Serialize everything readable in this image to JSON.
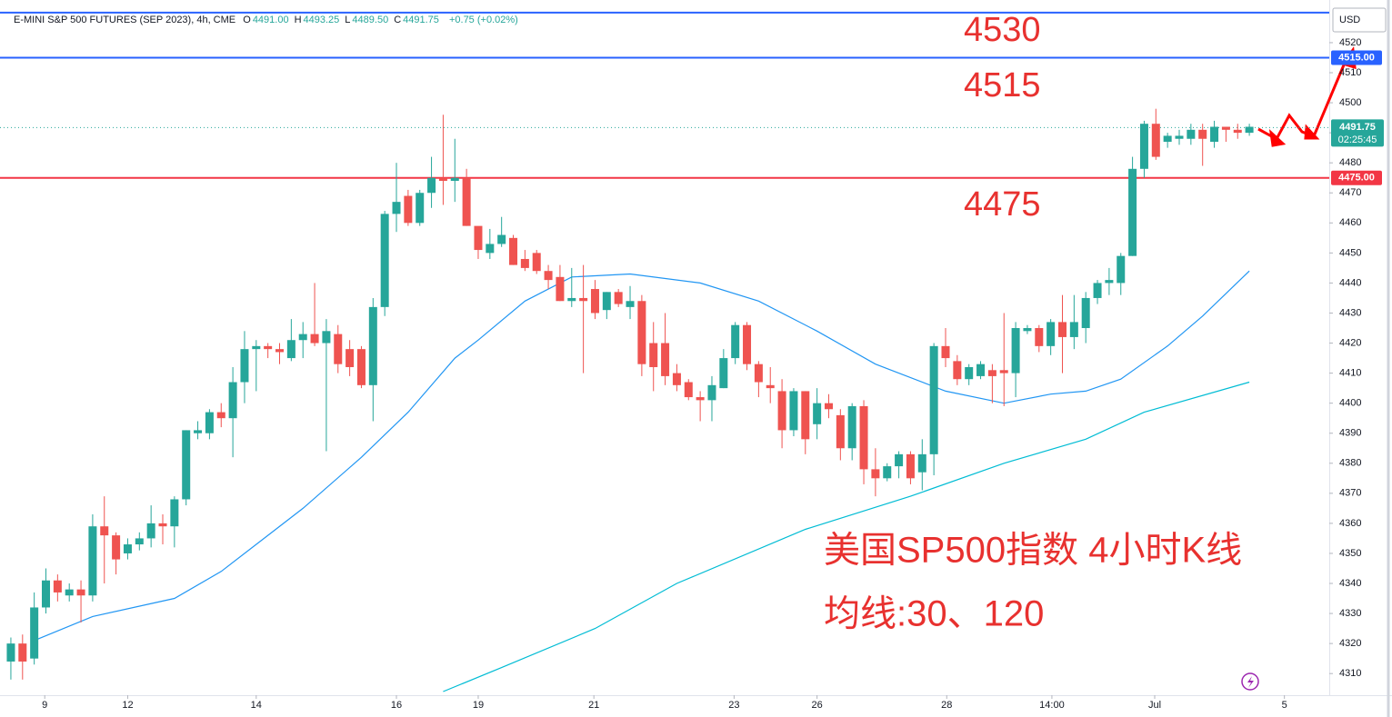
{
  "chart_data": {
    "type": "candlestick",
    "title": "E-MINI S&P 500 FUTURES (SEP 2023), 4h, CME",
    "ohlc_legend": [
      {
        "label": "O",
        "value": "4491.00"
      },
      {
        "label": "H",
        "value": "4493.25"
      },
      {
        "label": "L",
        "value": "4489.50"
      },
      {
        "label": "C",
        "value": "4491.75"
      }
    ],
    "change": "+0.75 (+0.02%)",
    "currency": "USD",
    "up_color": "#26a69a",
    "down_color": "#ef5350",
    "candles": [
      [
        4314,
        4322,
        4308,
        4320
      ],
      [
        4320,
        4323,
        4308,
        4314
      ],
      [
        4315,
        4337,
        4313,
        4332
      ],
      [
        4332,
        4345,
        4330,
        4341
      ],
      [
        4341,
        4343,
        4334,
        4337
      ],
      [
        4336,
        4340,
        4334,
        4338
      ],
      [
        4338,
        4341,
        4327,
        4336
      ],
      [
        4336,
        4363,
        4334,
        4359
      ],
      [
        4359,
        4369,
        4340,
        4356
      ],
      [
        4356,
        4357,
        4343,
        4348
      ],
      [
        4350,
        4355,
        4348,
        4353
      ],
      [
        4353,
        4357,
        4351,
        4355
      ],
      [
        4355,
        4366,
        4352,
        4360
      ],
      [
        4360,
        4363,
        4353,
        4359
      ],
      [
        4359,
        4369,
        4352,
        4368
      ],
      [
        4368,
        4391,
        4366,
        4391
      ],
      [
        4390,
        4394,
        4388,
        4391
      ],
      [
        4390,
        4398,
        4388,
        4397
      ],
      [
        4397,
        4400,
        4392,
        4395
      ],
      [
        4395,
        4412,
        4382,
        4407
      ],
      [
        4407,
        4424,
        4400,
        4418
      ],
      [
        4418,
        4421,
        4404,
        4419
      ],
      [
        4419,
        4420,
        4415,
        4418
      ],
      [
        4418,
        4420,
        4413,
        4417
      ],
      [
        4415,
        4428,
        4414,
        4421
      ],
      [
        4421,
        4427,
        4415,
        4423
      ],
      [
        4423,
        4440,
        4419,
        4420
      ],
      [
        4420,
        4428,
        4384,
        4424
      ],
      [
        4423,
        4426,
        4410,
        4413
      ],
      [
        4418,
        4421,
        4409,
        4412
      ],
      [
        4418,
        4419,
        4405,
        4406
      ],
      [
        4406,
        4435,
        4394,
        4432
      ],
      [
        4432,
        4464,
        4429,
        4463
      ],
      [
        4463,
        4480,
        4457,
        4467
      ],
      [
        4469,
        4471,
        4459,
        4460
      ],
      [
        4460,
        4471,
        4459,
        4470
      ],
      [
        4470,
        4482,
        4465,
        4475
      ],
      [
        4475,
        4496,
        4466,
        4474
      ],
      [
        4474,
        4488,
        4467,
        4475
      ],
      [
        4475,
        4478,
        4459,
        4459
      ],
      [
        4459,
        4457,
        4448,
        4451
      ],
      [
        4450,
        4458,
        4448,
        4453
      ],
      [
        4453,
        4462,
        4452,
        4456
      ],
      [
        4455,
        4456,
        4446,
        4446
      ],
      [
        4448,
        4451,
        4444,
        4445
      ],
      [
        4450,
        4451,
        4443,
        4444
      ],
      [
        4444,
        4446,
        4438,
        4441
      ],
      [
        4442,
        4446,
        4434,
        4434
      ],
      [
        4434,
        4445,
        4432,
        4435
      ],
      [
        4435,
        4446,
        4410,
        4434
      ],
      [
        4438,
        4441,
        4428,
        4430
      ],
      [
        4431,
        4437,
        4428,
        4437
      ],
      [
        4437,
        4438,
        4432,
        4433
      ],
      [
        4432,
        4439,
        4428,
        4434
      ],
      [
        4434,
        4436,
        4409,
        4413
      ],
      [
        4420,
        4427,
        4404,
        4412
      ],
      [
        4420,
        4430,
        4406,
        4409
      ],
      [
        4410,
        4413,
        4404,
        4406
      ],
      [
        4407,
        4408,
        4401,
        4402
      ],
      [
        4402,
        4404,
        4394,
        4401
      ],
      [
        4401,
        4409,
        4394,
        4406
      ],
      [
        4405,
        4418,
        4405,
        4415
      ],
      [
        4415,
        4427,
        4413,
        4426
      ],
      [
        4426,
        4427,
        4411,
        4413
      ],
      [
        4413,
        4414,
        4402,
        4407
      ],
      [
        4406,
        4412,
        4400,
        4405
      ],
      [
        4404,
        4408,
        4385,
        4391
      ],
      [
        4391,
        4405,
        4389,
        4404
      ],
      [
        4404,
        4404,
        4383,
        4388
      ],
      [
        4393,
        4405,
        4388,
        4400
      ],
      [
        4400,
        4403,
        4395,
        4398
      ],
      [
        4396,
        4398,
        4381,
        4385
      ],
      [
        4385,
        4400,
        4381,
        4399
      ],
      [
        4399,
        4401,
        4373,
        4378
      ],
      [
        4378,
        4385,
        4369,
        4375
      ],
      [
        4375,
        4380,
        4374,
        4379
      ],
      [
        4379,
        4384,
        4375,
        4383
      ],
      [
        4383,
        4384,
        4373,
        4375
      ],
      [
        4377,
        4388,
        4371,
        4383
      ],
      [
        4383,
        4420,
        4376,
        4419
      ],
      [
        4419,
        4425,
        4412,
        4415
      ],
      [
        4414,
        4416,
        4406,
        4408
      ],
      [
        4408,
        4413,
        4406,
        4412
      ],
      [
        4409,
        4414,
        4408,
        4413
      ],
      [
        4411,
        4413,
        4400,
        4409
      ],
      [
        4411,
        4430,
        4399,
        4410
      ],
      [
        4410,
        4427,
        4402,
        4425
      ],
      [
        4424,
        4426,
        4423,
        4425
      ],
      [
        4425,
        4426,
        4417,
        4419
      ],
      [
        4419,
        4428,
        4416,
        4427
      ],
      [
        4427,
        4436,
        4410,
        4422
      ],
      [
        4422,
        4436,
        4418,
        4427
      ],
      [
        4425,
        4437,
        4420,
        4435
      ],
      [
        4435,
        4441,
        4433,
        4440
      ],
      [
        4440,
        4445,
        4436,
        4441
      ],
      [
        4440,
        4450,
        4436,
        4449
      ],
      [
        4449,
        4482,
        4449,
        4478
      ],
      [
        4478,
        4494,
        4475,
        4493
      ],
      [
        4493,
        4498,
        4481,
        4482
      ],
      [
        4487,
        4490,
        4485,
        4489
      ],
      [
        4488,
        4491,
        4486,
        4489
      ],
      [
        4488,
        4493,
        4486,
        4491
      ],
      [
        4491,
        4493,
        4479,
        4488
      ],
      [
        4487,
        4494,
        4485,
        4492
      ],
      [
        4492,
        4492,
        4487,
        4491
      ],
      [
        4491,
        4493,
        4488,
        4490
      ],
      [
        4490,
        4493,
        4489,
        4492
      ]
    ],
    "moving_averages": [
      {
        "color": "#2196f3",
        "x": [
          2,
          7,
          14,
          18,
          22,
          25,
          30,
          34,
          38,
          40,
          44,
          48,
          53,
          59,
          64,
          69,
          74,
          80,
          85,
          89,
          92,
          95,
          99,
          102,
          106
        ],
        "values": [
          4321,
          4329,
          4335,
          4344,
          4356,
          4365,
          4382,
          4397,
          4415,
          4421,
          4434,
          4442,
          4443,
          4440,
          4434,
          4424,
          4413,
          4404,
          4400,
          4403,
          4404,
          4408,
          4419,
          4429,
          4444
        ]
      },
      {
        "color": "#00bcd4",
        "x": [
          37,
          42,
          50,
          57,
          68,
          77,
          85,
          92,
          97,
          106
        ],
        "values": [
          4304,
          4312,
          4325,
          4340,
          4358,
          4369,
          4380,
          4388,
          4397,
          4407
        ]
      }
    ],
    "levels": [
      {
        "value": 4530,
        "color": "#2962ff"
      },
      {
        "value": 4515,
        "color": "#2962ff",
        "value_label": "4515.00"
      },
      {
        "value": 4475,
        "color": "#f23645",
        "value_label": "4475.00"
      }
    ],
    "last_price": 4491.75,
    "countdown": "02:25:45",
    "annotations": [
      "4530",
      "4515",
      "4475",
      "美国SP500指数 4小时K线",
      "均线:30、120"
    ],
    "xlim": [
      -0.93,
      112.84
    ],
    "ylim": [
      4302.8,
      4534.2
    ],
    "yticks": [
      4310,
      4320,
      4330,
      4340,
      4350,
      4360,
      4370,
      4380,
      4390,
      4400,
      4410,
      4420,
      4430,
      4440,
      4450,
      4460,
      4470,
      4480,
      4490,
      4500,
      4510,
      4520
    ],
    "xticks": [
      {
        "value": 2.9,
        "label": "9"
      },
      {
        "value": 10,
        "label": "12"
      },
      {
        "value": 21,
        "label": "14"
      },
      {
        "value": 33,
        "label": "16"
      },
      {
        "value": 40,
        "label": "19"
      },
      {
        "value": 49.9,
        "label": "21"
      },
      {
        "value": 61.9,
        "label": "23"
      },
      {
        "value": 69,
        "label": "26"
      },
      {
        "value": 80.1,
        "label": "28"
      },
      {
        "value": 89.1,
        "label": "14:00"
      },
      {
        "value": 97.9,
        "label": "Jul"
      },
      {
        "value": 109,
        "label": "5"
      }
    ]
  }
}
